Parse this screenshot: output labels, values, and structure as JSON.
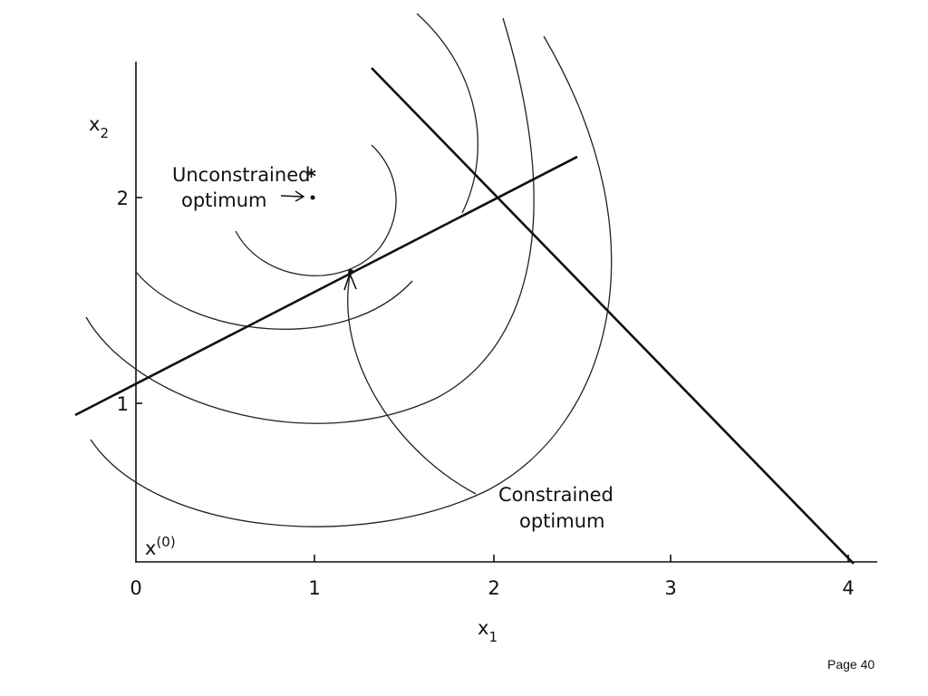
{
  "axes": {
    "y_label": {
      "text": "x",
      "subscript": "2"
    },
    "x_label": {
      "text": "x",
      "subscript": "1"
    },
    "x_ticks": [
      "0",
      "1",
      "2",
      "3",
      "4"
    ],
    "y_ticks": [
      "1",
      "2"
    ]
  },
  "annotations": {
    "unconstrained": {
      "lines": [
        "Unconstrained",
        "optimum"
      ],
      "marker": "*"
    },
    "constrained": {
      "lines": [
        "Constrained",
        "optimum"
      ]
    },
    "start_point": {
      "text": "x",
      "superscript": "(0)"
    }
  },
  "footer": {
    "page": "Page 40"
  }
}
